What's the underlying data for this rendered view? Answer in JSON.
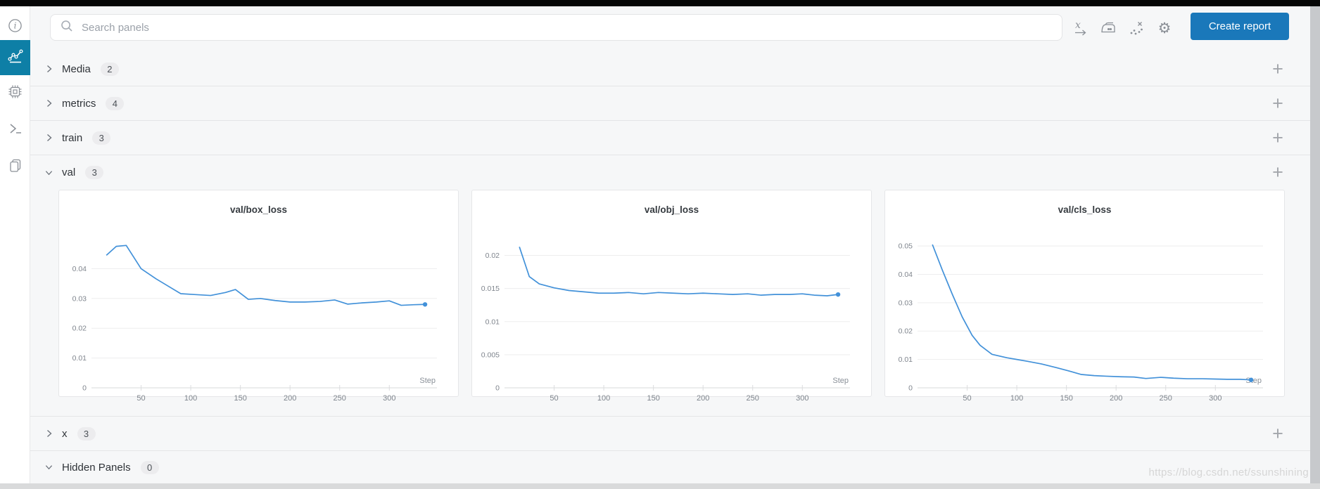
{
  "topbar": {
    "search_placeholder": "Search panels",
    "create_report_label": "Create report",
    "icon_names": [
      "x-axis-icon",
      "smoothing-iron-icon",
      "outliers-icon",
      "settings-gear-icon"
    ]
  },
  "sidebar": {
    "items": [
      {
        "name": "info",
        "selected": false
      },
      {
        "name": "panels",
        "selected": true
      },
      {
        "name": "system",
        "selected": false
      },
      {
        "name": "logs",
        "selected": false
      },
      {
        "name": "files",
        "selected": false
      }
    ]
  },
  "sections": [
    {
      "label": "Media",
      "count": "2"
    },
    {
      "label": "metrics",
      "count": "4"
    },
    {
      "label": "train",
      "count": "3"
    },
    {
      "label": "val",
      "count": "3"
    },
    {
      "label": "x",
      "count": "3"
    },
    {
      "label": "Hidden Panels",
      "count": "0"
    }
  ],
  "watermark": "https://blog.csdn.net/ssunshining",
  "colors": {
    "sidebar_accent": "#0e7fa6",
    "button_blue": "#1a78ba",
    "line_blue": "#4291d9"
  },
  "chart_data": [
    {
      "type": "line",
      "title": "val/box_loss",
      "xlabel": "Step",
      "x_ticks": [
        50,
        100,
        150,
        200,
        250,
        300
      ],
      "xlim": [
        0,
        348
      ],
      "ylim": [
        0,
        0.05
      ],
      "y_ticks": [
        0,
        0.01,
        0.02,
        0.03,
        0.04
      ],
      "x": [
        15,
        25,
        35,
        50,
        65,
        75,
        90,
        105,
        120,
        135,
        145,
        158,
        170,
        185,
        200,
        215,
        230,
        245,
        258,
        272,
        287,
        300,
        312,
        325,
        336
      ],
      "y": [
        0.0445,
        0.0475,
        0.0478,
        0.04,
        0.0366,
        0.0346,
        0.0316,
        0.0313,
        0.031,
        0.032,
        0.033,
        0.0297,
        0.03,
        0.0293,
        0.0288,
        0.0288,
        0.029,
        0.0295,
        0.0281,
        0.0285,
        0.0288,
        0.0292,
        0.0277,
        0.0279,
        0.028
      ],
      "end_marker": true
    },
    {
      "type": "line",
      "title": "val/obj_loss",
      "xlabel": "Step",
      "x_ticks": [
        50,
        100,
        150,
        200,
        250,
        300
      ],
      "xlim": [
        0,
        348
      ],
      "ylim": [
        0,
        0.0225
      ],
      "y_ticks": [
        0,
        0.005,
        0.01,
        0.015,
        0.02
      ],
      "x": [
        15,
        25,
        35,
        50,
        65,
        80,
        95,
        110,
        125,
        140,
        155,
        170,
        185,
        200,
        215,
        230,
        245,
        258,
        272,
        287,
        300,
        312,
        325,
        336
      ],
      "y": [
        0.0213,
        0.0168,
        0.0157,
        0.0151,
        0.0147,
        0.0145,
        0.0143,
        0.0143,
        0.0144,
        0.0142,
        0.0144,
        0.0143,
        0.0142,
        0.0143,
        0.0142,
        0.0141,
        0.0142,
        0.014,
        0.0141,
        0.0141,
        0.0142,
        0.014,
        0.0139,
        0.0141
      ],
      "end_marker": true
    },
    {
      "type": "line",
      "title": "val/cls_loss",
      "xlabel": "Step",
      "x_ticks": [
        50,
        100,
        150,
        200,
        250,
        300
      ],
      "xlim": [
        0,
        348
      ],
      "ylim": [
        0,
        0.0525
      ],
      "y_ticks": [
        0,
        0.01,
        0.02,
        0.03,
        0.04,
        0.05
      ],
      "x": [
        15,
        25,
        35,
        45,
        55,
        63,
        75,
        90,
        100,
        110,
        125,
        140,
        152,
        165,
        178,
        190,
        205,
        218,
        230,
        245,
        258,
        272,
        287,
        300,
        312,
        325,
        336
      ],
      "y": [
        0.0505,
        0.0415,
        0.033,
        0.025,
        0.0185,
        0.015,
        0.0118,
        0.0106,
        0.01,
        0.0094,
        0.0084,
        0.0071,
        0.006,
        0.0047,
        0.0043,
        0.0041,
        0.0039,
        0.0038,
        0.0033,
        0.0037,
        0.0034,
        0.0032,
        0.0032,
        0.0031,
        0.003,
        0.003,
        0.0028
      ],
      "end_marker": true
    }
  ]
}
